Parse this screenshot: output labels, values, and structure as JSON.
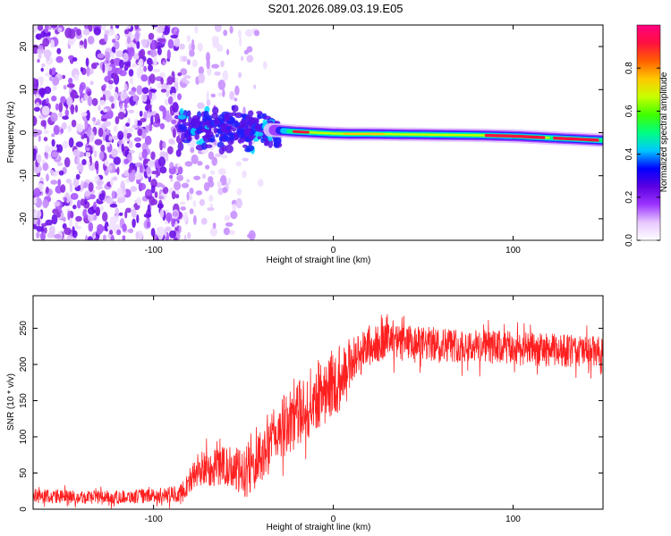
{
  "title": "S201.2026.089.03.19.E05",
  "chart_data": [
    {
      "type": "heatmap",
      "xlabel": "Height of straight line (km)",
      "ylabel": "Frequency (Hz)",
      "xlim": [
        -167,
        150
      ],
      "ylim": [
        -25,
        25
      ],
      "xticks": [
        -100,
        0,
        100
      ],
      "yticks": [
        -20,
        -10,
        0,
        10,
        20
      ],
      "colorbar": {
        "label": "Normalized spectral amplitude",
        "range": [
          0,
          1
        ],
        "ticks": [
          "0.0",
          "0.2",
          "0.4",
          "0.6",
          "0.8"
        ],
        "colors": [
          "#ffffff",
          "#e8c8ff",
          "#9b33ff",
          "#5a00e0",
          "#0000ff",
          "#00c8ff",
          "#00ff80",
          "#40ff00",
          "#c8ff00",
          "#ffc800",
          "#ff6000",
          "#ff1040",
          "#ff0080"
        ]
      },
      "ridge": {
        "x": [
          -80,
          -60,
          -40,
          -30,
          -20,
          -10,
          0,
          10,
          20,
          40,
          60,
          80,
          100,
          120,
          140,
          150
        ],
        "freq": [
          1.2,
          1.0,
          0.8,
          0.5,
          0.2,
          0.0,
          -0.2,
          -0.3,
          -0.3,
          -0.4,
          -0.5,
          -0.6,
          -0.8,
          -1.2,
          -1.6,
          -1.8
        ]
      }
    },
    {
      "type": "line",
      "xlabel": "Height of straight line (km)",
      "ylabel": "SNR (10 * v/v)",
      "xlim": [
        -167,
        150
      ],
      "ylim": [
        0,
        295
      ],
      "xticks": [
        -100,
        0,
        100
      ],
      "yticks": [
        0,
        50,
        100,
        150,
        200,
        250
      ],
      "color": "#ff2020",
      "series": [
        {
          "name": "SNR",
          "x": [
            -167,
            -140,
            -120,
            -100,
            -85,
            -75,
            -60,
            -50,
            -40,
            -30,
            -20,
            -10,
            0,
            10,
            20,
            30,
            40,
            60,
            80,
            100,
            120,
            140,
            150
          ],
          "mean": [
            18,
            17,
            17,
            18,
            22,
            55,
            60,
            48,
            70,
            110,
            130,
            155,
            175,
            205,
            225,
            232,
            228,
            228,
            225,
            222,
            220,
            218,
            216
          ],
          "spread": [
            10,
            10,
            9,
            10,
            12,
            25,
            28,
            35,
            38,
            42,
            45,
            48,
            48,
            35,
            28,
            25,
            25,
            24,
            24,
            24,
            23,
            23,
            22
          ]
        }
      ]
    }
  ]
}
